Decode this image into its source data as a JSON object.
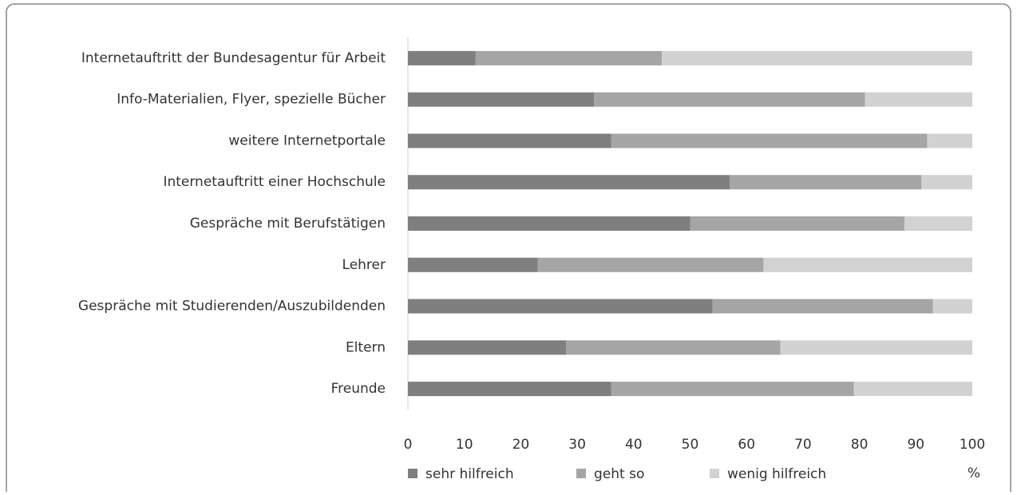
{
  "chart_data": {
    "type": "stacked-barh",
    "categories": [
      "Internetauftritt der Bundesagentur für Arbeit",
      "Info-Materialien, Flyer, spezielle Bücher",
      "weitere Internetportale",
      "Internetauftritt einer Hochschule",
      "Gespräche mit Berufstätigen",
      "Lehrer",
      "Gespräche mit Studierenden/Auszubildenden",
      "Eltern",
      "Freunde"
    ],
    "series": [
      {
        "name": "sehr hilfreich",
        "color": "#7f7f7f",
        "values": [
          12,
          33,
          36,
          57,
          50,
          23,
          54,
          28,
          36
        ]
      },
      {
        "name": "geht so",
        "color": "#a5a5a5",
        "values": [
          33,
          48,
          56,
          34,
          38,
          40,
          39,
          38,
          43
        ]
      },
      {
        "name": "wenig hilfreich",
        "color": "#d2d2d2",
        "values": [
          55,
          19,
          8,
          9,
          12,
          37,
          7,
          34,
          21
        ]
      }
    ],
    "xlabel": "%",
    "xlim": [
      0,
      100
    ],
    "xticks": [
      0,
      10,
      20,
      30,
      40,
      50,
      60,
      70,
      80,
      90,
      100
    ],
    "grid": false,
    "legend": "bottom"
  }
}
